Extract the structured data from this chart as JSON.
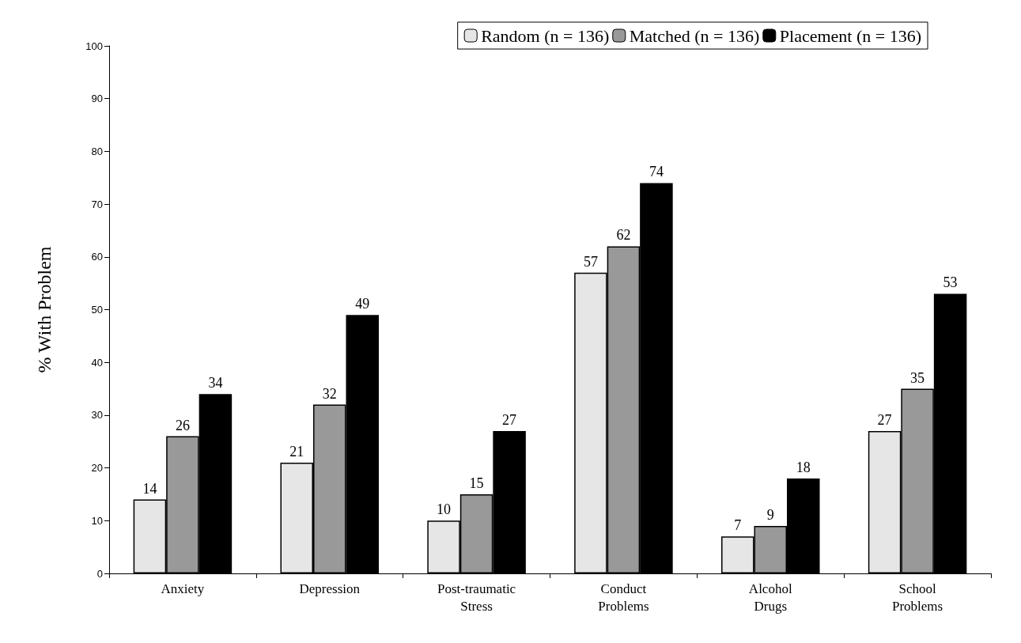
{
  "chart_data": {
    "type": "bar",
    "ylabel": "% With Problem",
    "categories": [
      "Anxiety",
      "Depression",
      "Post-traumatic\nStress",
      "Conduct\nProblems",
      "Alcohol\nDrugs",
      "School\nProblems"
    ],
    "series": [
      {
        "name": "Random (n = 136)",
        "color": "#e6e6e6",
        "values": [
          14,
          21,
          10,
          57,
          7,
          27
        ]
      },
      {
        "name": "Matched (n = 136)",
        "color": "#999999",
        "values": [
          26,
          32,
          15,
          62,
          9,
          35
        ]
      },
      {
        "name": "Placement (n = 136)",
        "color": "#000000",
        "values": [
          34,
          49,
          27,
          74,
          18,
          53
        ]
      }
    ],
    "ylim": [
      0,
      100
    ],
    "yticks": [
      0,
      10,
      20,
      30,
      40,
      50,
      60,
      70,
      80,
      90,
      100
    ],
    "grid": false,
    "legend": "top right",
    "data_labels": true
  }
}
